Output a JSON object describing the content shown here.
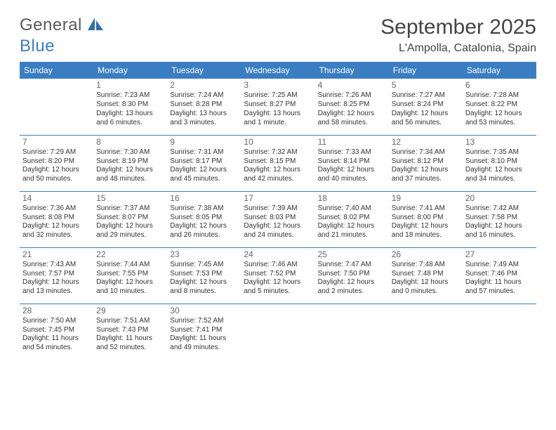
{
  "brand": {
    "text1": "General",
    "text2": "Blue"
  },
  "title": "September 2025",
  "location": "L'Ampolla, Catalonia, Spain",
  "colors": {
    "header_bg": "#3a7ec1",
    "header_text": "#ffffff",
    "body_bg": "#ffffff",
    "text": "#333333",
    "daynum": "#666666",
    "rule": "#3a7ec1"
  },
  "weekday_labels": [
    "Sunday",
    "Monday",
    "Tuesday",
    "Wednesday",
    "Thursday",
    "Friday",
    "Saturday"
  ],
  "weeks": [
    [
      null,
      {
        "n": "1",
        "sr": "Sunrise: 7:23 AM",
        "ss": "Sunset: 8:30 PM",
        "dl": "Daylight: 13 hours and 6 minutes."
      },
      {
        "n": "2",
        "sr": "Sunrise: 7:24 AM",
        "ss": "Sunset: 8:28 PM",
        "dl": "Daylight: 13 hours and 3 minutes."
      },
      {
        "n": "3",
        "sr": "Sunrise: 7:25 AM",
        "ss": "Sunset: 8:27 PM",
        "dl": "Daylight: 13 hours and 1 minute."
      },
      {
        "n": "4",
        "sr": "Sunrise: 7:26 AM",
        "ss": "Sunset: 8:25 PM",
        "dl": "Daylight: 12 hours and 58 minutes."
      },
      {
        "n": "5",
        "sr": "Sunrise: 7:27 AM",
        "ss": "Sunset: 8:24 PM",
        "dl": "Daylight: 12 hours and 56 minutes."
      },
      {
        "n": "6",
        "sr": "Sunrise: 7:28 AM",
        "ss": "Sunset: 8:22 PM",
        "dl": "Daylight: 12 hours and 53 minutes."
      }
    ],
    [
      {
        "n": "7",
        "sr": "Sunrise: 7:29 AM",
        "ss": "Sunset: 8:20 PM",
        "dl": "Daylight: 12 hours and 50 minutes."
      },
      {
        "n": "8",
        "sr": "Sunrise: 7:30 AM",
        "ss": "Sunset: 8:19 PM",
        "dl": "Daylight: 12 hours and 48 minutes."
      },
      {
        "n": "9",
        "sr": "Sunrise: 7:31 AM",
        "ss": "Sunset: 8:17 PM",
        "dl": "Daylight: 12 hours and 45 minutes."
      },
      {
        "n": "10",
        "sr": "Sunrise: 7:32 AM",
        "ss": "Sunset: 8:15 PM",
        "dl": "Daylight: 12 hours and 42 minutes."
      },
      {
        "n": "11",
        "sr": "Sunrise: 7:33 AM",
        "ss": "Sunset: 8:14 PM",
        "dl": "Daylight: 12 hours and 40 minutes."
      },
      {
        "n": "12",
        "sr": "Sunrise: 7:34 AM",
        "ss": "Sunset: 8:12 PM",
        "dl": "Daylight: 12 hours and 37 minutes."
      },
      {
        "n": "13",
        "sr": "Sunrise: 7:35 AM",
        "ss": "Sunset: 8:10 PM",
        "dl": "Daylight: 12 hours and 34 minutes."
      }
    ],
    [
      {
        "n": "14",
        "sr": "Sunrise: 7:36 AM",
        "ss": "Sunset: 8:08 PM",
        "dl": "Daylight: 12 hours and 32 minutes."
      },
      {
        "n": "15",
        "sr": "Sunrise: 7:37 AM",
        "ss": "Sunset: 8:07 PM",
        "dl": "Daylight: 12 hours and 29 minutes."
      },
      {
        "n": "16",
        "sr": "Sunrise: 7:38 AM",
        "ss": "Sunset: 8:05 PM",
        "dl": "Daylight: 12 hours and 26 minutes."
      },
      {
        "n": "17",
        "sr": "Sunrise: 7:39 AM",
        "ss": "Sunset: 8:03 PM",
        "dl": "Daylight: 12 hours and 24 minutes."
      },
      {
        "n": "18",
        "sr": "Sunrise: 7:40 AM",
        "ss": "Sunset: 8:02 PM",
        "dl": "Daylight: 12 hours and 21 minutes."
      },
      {
        "n": "19",
        "sr": "Sunrise: 7:41 AM",
        "ss": "Sunset: 8:00 PM",
        "dl": "Daylight: 12 hours and 18 minutes."
      },
      {
        "n": "20",
        "sr": "Sunrise: 7:42 AM",
        "ss": "Sunset: 7:58 PM",
        "dl": "Daylight: 12 hours and 16 minutes."
      }
    ],
    [
      {
        "n": "21",
        "sr": "Sunrise: 7:43 AM",
        "ss": "Sunset: 7:57 PM",
        "dl": "Daylight: 12 hours and 13 minutes."
      },
      {
        "n": "22",
        "sr": "Sunrise: 7:44 AM",
        "ss": "Sunset: 7:55 PM",
        "dl": "Daylight: 12 hours and 10 minutes."
      },
      {
        "n": "23",
        "sr": "Sunrise: 7:45 AM",
        "ss": "Sunset: 7:53 PM",
        "dl": "Daylight: 12 hours and 8 minutes."
      },
      {
        "n": "24",
        "sr": "Sunrise: 7:46 AM",
        "ss": "Sunset: 7:52 PM",
        "dl": "Daylight: 12 hours and 5 minutes."
      },
      {
        "n": "25",
        "sr": "Sunrise: 7:47 AM",
        "ss": "Sunset: 7:50 PM",
        "dl": "Daylight: 12 hours and 2 minutes."
      },
      {
        "n": "26",
        "sr": "Sunrise: 7:48 AM",
        "ss": "Sunset: 7:48 PM",
        "dl": "Daylight: 12 hours and 0 minutes."
      },
      {
        "n": "27",
        "sr": "Sunrise: 7:49 AM",
        "ss": "Sunset: 7:46 PM",
        "dl": "Daylight: 11 hours and 57 minutes."
      }
    ],
    [
      {
        "n": "28",
        "sr": "Sunrise: 7:50 AM",
        "ss": "Sunset: 7:45 PM",
        "dl": "Daylight: 11 hours and 54 minutes."
      },
      {
        "n": "29",
        "sr": "Sunrise: 7:51 AM",
        "ss": "Sunset: 7:43 PM",
        "dl": "Daylight: 11 hours and 52 minutes."
      },
      {
        "n": "30",
        "sr": "Sunrise: 7:52 AM",
        "ss": "Sunset: 7:41 PM",
        "dl": "Daylight: 11 hours and 49 minutes."
      },
      null,
      null,
      null,
      null
    ]
  ]
}
